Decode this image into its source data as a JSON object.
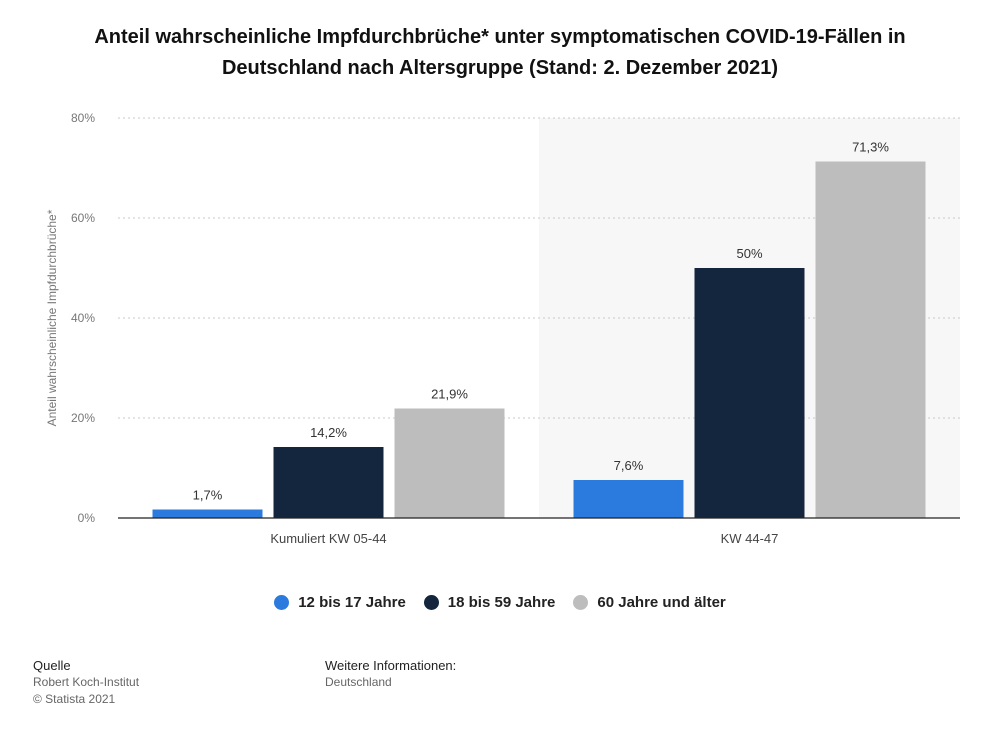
{
  "title_line1": "Anteil wahrscheinliche Impfdurchbrüche* unter symptomatischen COVID-19-Fällen in",
  "title_line2": "Deutschland nach Altersgruppe (Stand: 2. Dezember 2021)",
  "chart_data": {
    "type": "bar",
    "categories": [
      "Kumuliert KW 05-44",
      "KW 44-47"
    ],
    "series": [
      {
        "name": "12 bis 17 Jahre",
        "color": "#2b7bde",
        "values": [
          1.7,
          7.6
        ],
        "labels": [
          "1,7%",
          "7,6%"
        ]
      },
      {
        "name": "18 bis 59 Jahre",
        "color": "#14263d",
        "values": [
          14.2,
          50
        ],
        "labels": [
          "14,2%",
          "50%"
        ]
      },
      {
        "name": "60 Jahre und älter",
        "color": "#bdbdbd",
        "values": [
          21.9,
          71.3
        ],
        "labels": [
          "21,9%",
          "71,3%"
        ]
      }
    ],
    "ylabel": "Anteil wahrscheinliche Impfdurchbrüche*",
    "ylim": [
      0,
      80
    ],
    "yticks": [
      0,
      20,
      40,
      60,
      80
    ],
    "ytick_labels": [
      "0%",
      "20%",
      "40%",
      "60%",
      "80%"
    ],
    "grid": true,
    "highlighted_category": "KW 44-47",
    "legend_position": "bottom"
  },
  "footer": {
    "source_heading": "Quelle",
    "source_lines": [
      "Robert Koch-Institut",
      "© Statista 2021"
    ],
    "info_heading": "Weitere Informationen:",
    "info_lines": [
      "Deutschland"
    ]
  }
}
